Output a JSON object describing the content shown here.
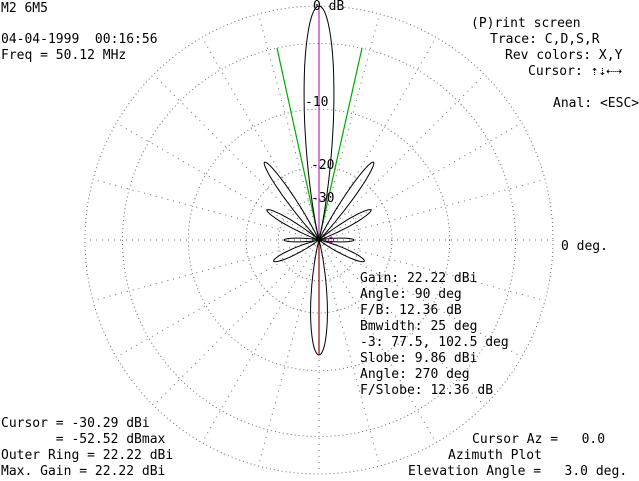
{
  "header": {
    "antenna": "M2 6M5",
    "datetime": "04-04-1999  00:16:56",
    "freq": "Freq = 50.12 MHz"
  },
  "menu": {
    "print": "(P)rint screen",
    "trace": "Trace: C,D,S,R",
    "rev_colors": "Rev colors: X,Y",
    "cursor": "Cursor: ⇡⇣⇠⇢",
    "anal": "Anal: <ESC>"
  },
  "plot": {
    "ring_labels": [
      "0 dB",
      "-10",
      "-20",
      "-30"
    ],
    "angle_label": "0 deg.",
    "colors": {
      "pattern": "#000000",
      "grid": "#6b6b6b",
      "axis_vertical": "#b000b0",
      "beamwidth": "#00aa00",
      "cursor_line": "#a00000"
    }
  },
  "stats": {
    "gain": "Gain: 22.22 dBi",
    "angle": "Angle: 90 deg",
    "fb": "F/B: 12.36 dB",
    "bmwidth": "Bmwidth: 25 deg",
    "minus3": "-3: 77.5, 102.5 deg",
    "slobe": "Slobe: 9.86 dBi",
    "slobe_angle": "Angle: 270 deg",
    "fslobe": "F/Slobe: 12.36 dB"
  },
  "footer": {
    "cursor": "Cursor = -30.29 dBi",
    "cursor_max": "       = -52.52 dBmax",
    "outer_ring": "Outer Ring = 22.22 dBi",
    "max_gain": "Max. Gain = 22.22 dBi",
    "cursor_az": "Cursor Az =   0.0",
    "plot_type": "Azimuth Plot",
    "elevation": "Elevation Angle =   3.0 deg."
  }
}
